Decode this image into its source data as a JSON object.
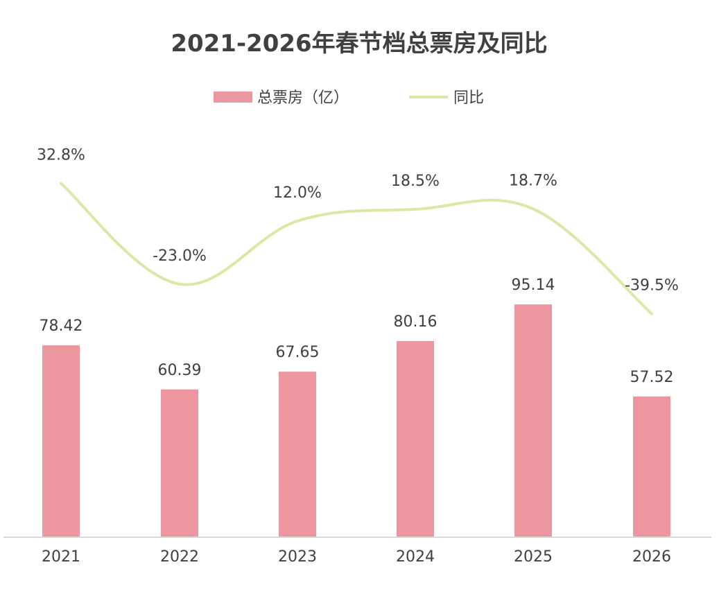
{
  "chart_data": {
    "type": "bar",
    "title": "2021-2026年春节档总票房及同比",
    "categories": [
      "2021",
      "2022",
      "2023",
      "2024",
      "2025",
      "2026"
    ],
    "series": [
      {
        "name": "总票房（亿）",
        "type": "bar",
        "values": [
          78.42,
          60.39,
          67.65,
          80.16,
          95.14,
          57.52
        ],
        "labels": [
          "78.42",
          "60.39",
          "67.65",
          "80.16",
          "95.14",
          "57.52"
        ],
        "color": "#ec96a0"
      },
      {
        "name": "同比",
        "type": "line",
        "values": [
          32.8,
          -23.0,
          12.0,
          18.5,
          18.7,
          -39.5
        ],
        "labels": [
          "32.8%",
          "-23.0%",
          "12.0%",
          "18.5%",
          "18.7%",
          "-39.5%"
        ],
        "color": "#dfe6a3"
      }
    ],
    "legend": "top-center",
    "grid": false
  }
}
